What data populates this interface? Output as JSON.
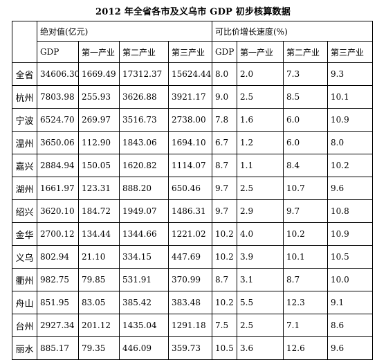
{
  "title": "2012 年全省各市及义乌市 GDP 初步核算数据",
  "header": {
    "group_absolute": "绝对值(亿元)",
    "group_growth": "可比价增长速度(%)",
    "columns_absolute": [
      "GDP",
      "第一产业",
      "第二产业",
      "第三产业"
    ],
    "columns_growth": [
      "GDP",
      "第一产业",
      "第二产业",
      "第三产业"
    ]
  },
  "rows": [
    {
      "region": "全省",
      "abs": [
        "34606.30",
        "1669.49",
        "17312.37",
        "15624.44"
      ],
      "growth": [
        "8.0",
        "2.0",
        "7.3",
        "9.3"
      ]
    },
    {
      "region": "杭州",
      "abs": [
        "7803.98",
        "255.93",
        "3626.88",
        "3921.17"
      ],
      "growth": [
        "9.0",
        "2.5",
        "8.5",
        "10.1"
      ]
    },
    {
      "region": "宁波",
      "abs": [
        "6524.70",
        "269.97",
        "3516.73",
        "2738.00"
      ],
      "growth": [
        "7.8",
        "1.6",
        "6.0",
        "10.9"
      ]
    },
    {
      "region": "温州",
      "abs": [
        "3650.06",
        "112.90",
        "1843.06",
        "1694.10"
      ],
      "growth": [
        "6.7",
        "1.2",
        "6.0",
        "8.0"
      ]
    },
    {
      "region": "嘉兴",
      "abs": [
        "2884.94",
        "150.05",
        "1620.82",
        "1114.07"
      ],
      "growth": [
        "8.7",
        "1.1",
        "8.4",
        "10.2"
      ]
    },
    {
      "region": "湖州",
      "abs": [
        "1661.97",
        "123.31",
        "888.20",
        "650.46"
      ],
      "growth": [
        "9.7",
        "2.5",
        "10.7",
        "9.6"
      ]
    },
    {
      "region": "绍兴",
      "abs": [
        "3620.10",
        "184.72",
        "1949.07",
        "1486.31"
      ],
      "growth": [
        "9.7",
        "2.9",
        "9.7",
        "10.8"
      ]
    },
    {
      "region": "金华",
      "abs": [
        "2700.12",
        "134.44",
        "1344.66",
        "1221.02"
      ],
      "growth": [
        "10.2",
        "4.0",
        "10.2",
        "10.9"
      ]
    },
    {
      "region": "义乌",
      "abs": [
        "802.94",
        "21.10",
        "334.15",
        "447.69"
      ],
      "growth": [
        "10.2",
        "3.9",
        "10.1",
        "10.5"
      ]
    },
    {
      "region": "衢州",
      "abs": [
        "982.75",
        "79.85",
        "531.91",
        "370.99"
      ],
      "growth": [
        "8.7",
        "3.1",
        "8.7",
        "10.0"
      ]
    },
    {
      "region": "舟山",
      "abs": [
        "851.95",
        "83.05",
        "385.42",
        "383.48"
      ],
      "growth": [
        "10.2",
        "5.5",
        "12.3",
        "9.1"
      ]
    },
    {
      "region": "台州",
      "abs": [
        "2927.34",
        "201.12",
        "1435.04",
        "1291.18"
      ],
      "growth": [
        "7.5",
        "2.5",
        "7.1",
        "8.6"
      ]
    },
    {
      "region": "丽水",
      "abs": [
        "885.17",
        "79.35",
        "446.09",
        "359.73"
      ],
      "growth": [
        "10.5",
        "3.6",
        "12.6",
        "9.6"
      ]
    }
  ]
}
